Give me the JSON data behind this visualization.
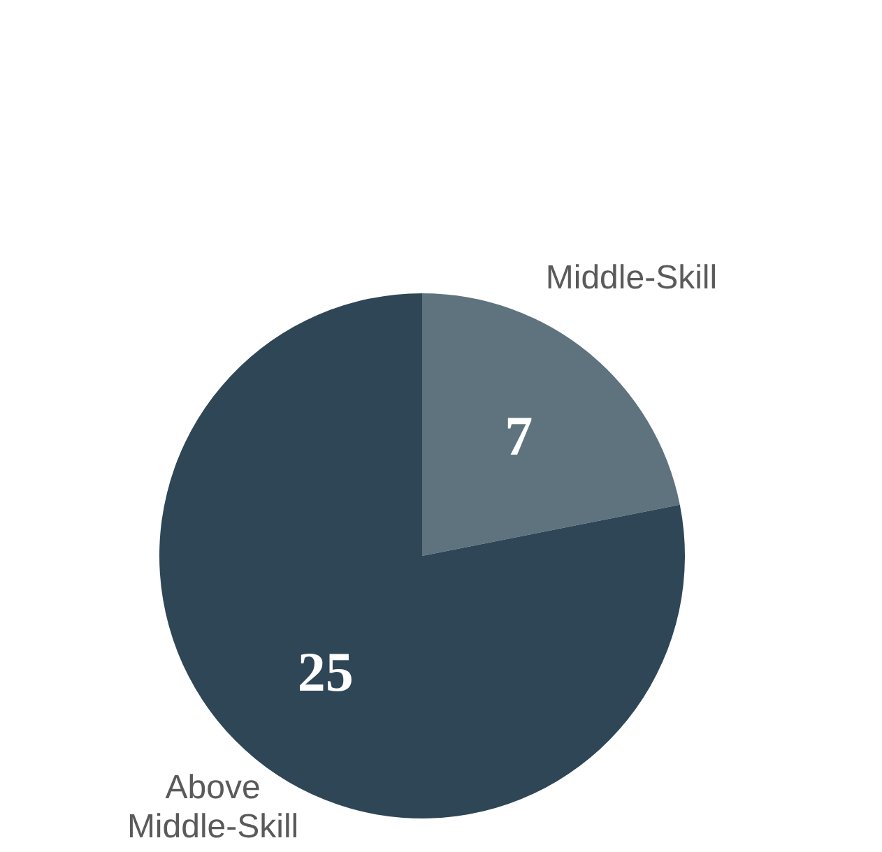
{
  "chart_data": {
    "type": "pie",
    "categories": [
      "Middle-Skill",
      "Above Middle-Skill"
    ],
    "values": [
      7,
      25
    ],
    "colors": [
      "#5f737f",
      "#2f4657"
    ],
    "data_labels": true
  }
}
